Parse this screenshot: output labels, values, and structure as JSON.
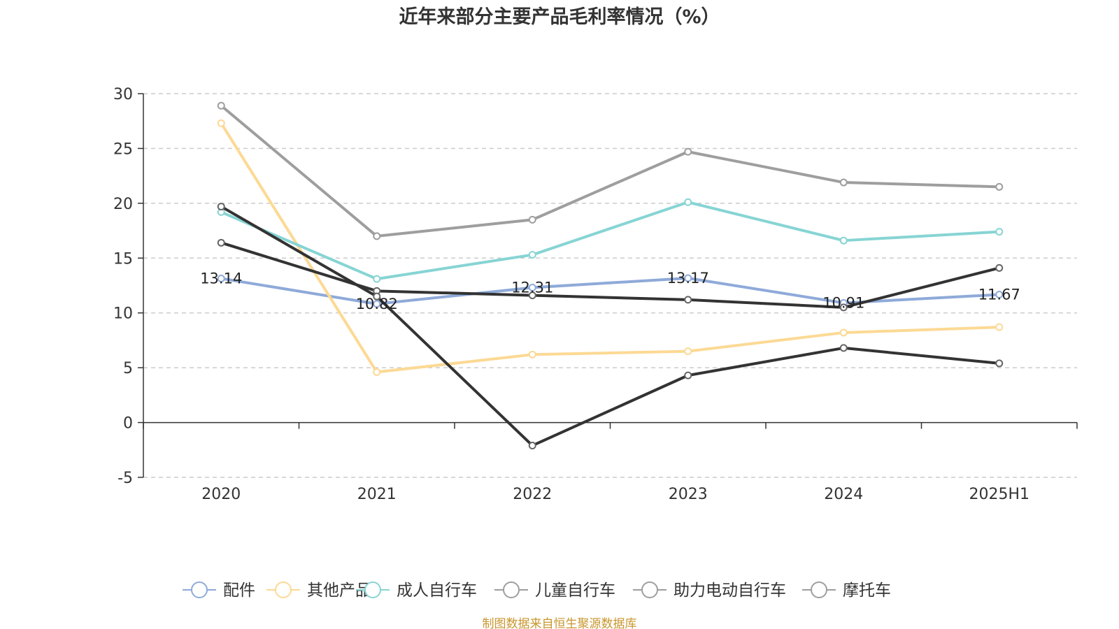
{
  "chart_data": {
    "type": "line",
    "title": "近年来部分主要产品毛利率情况（%）",
    "categories": [
      "2020",
      "2021",
      "2022",
      "2023",
      "2024",
      "2025H1"
    ],
    "ylim": [
      -5,
      30
    ],
    "yticks": [
      -5,
      0,
      5,
      10,
      15,
      20,
      25,
      30
    ],
    "grid": true,
    "legend_position": "bottom",
    "series": [
      {
        "name": "配件",
        "color": "#8eaad9",
        "values": [
          13.14,
          10.82,
          12.31,
          13.17,
          10.91,
          11.67
        ],
        "labels": [
          "13.14",
          "10.82",
          "12.31",
          "13.17",
          "10.91",
          "11.67"
        ]
      },
      {
        "name": "其他产品",
        "color": "#fcd994",
        "values": [
          27.3,
          4.6,
          6.2,
          6.5,
          8.2,
          8.7
        ]
      },
      {
        "name": "成人自行车",
        "color": "#87d4d4",
        "values": [
          19.2,
          13.1,
          15.3,
          20.1,
          16.6,
          17.4
        ]
      },
      {
        "name": "儿童自行车",
        "color": "#9e9e9e",
        "values": [
          28.9,
          17.0,
          18.5,
          24.7,
          21.9,
          21.5
        ]
      },
      {
        "name": "助力电动自行车",
        "color": "#333333",
        "values": [
          16.4,
          12.0,
          11.6,
          11.2,
          10.5,
          14.1
        ]
      },
      {
        "name": "摩托车",
        "color": "#333333",
        "values": [
          19.7,
          11.5,
          -2.1,
          4.3,
          6.8,
          5.4
        ]
      }
    ],
    "legend_marker_colors": [
      "#8eaad9",
      "#fcd994",
      "#87d4d4",
      "#9e9e9e",
      "#9e9e9e",
      "#9e9e9e"
    ],
    "source": "制图数据来自恒生聚源数据库"
  }
}
